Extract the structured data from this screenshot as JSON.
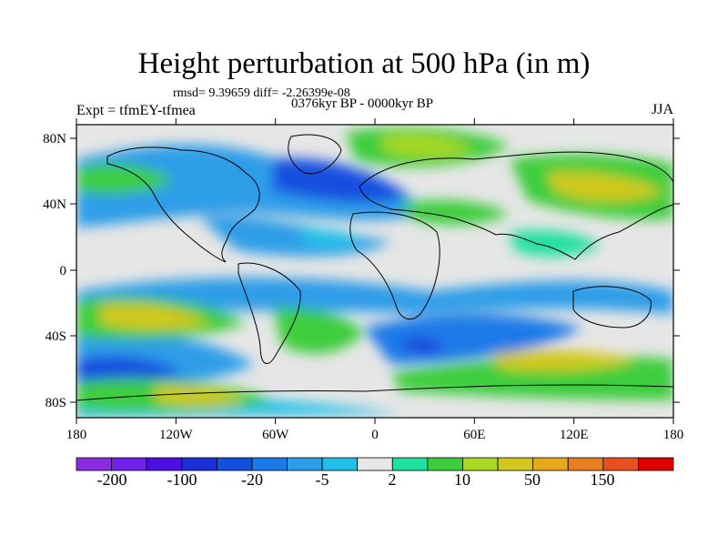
{
  "title": "Height perturbation at 500 hPa (in m)",
  "stats": "rmsd= 9.39659  diff= -2.26399e-08",
  "left_label": "Expt = tfmEY-tfmea",
  "center_label": "0376kyr BP - 0000kyr BP",
  "right_label": "JJA",
  "lon_ticks": [
    "180",
    "120W",
    "60W",
    "0",
    "60E",
    "120E",
    "180"
  ],
  "lat_ticks": [
    "80N",
    "40N",
    "0",
    "40S",
    "80S"
  ],
  "colorbar": {
    "colors": [
      "#8a2be2",
      "#7020e8",
      "#4b10e0",
      "#1a2fd6",
      "#1450e0",
      "#1a7ae8",
      "#2d9de8",
      "#20c0e8",
      "#e6e6e6",
      "#20e0a0",
      "#3ccd3c",
      "#a8d820",
      "#d2c81e",
      "#e8a81e",
      "#e88020",
      "#e85020",
      "#e00000"
    ],
    "labels": [
      "-200",
      "-100",
      "-20",
      "-5",
      "2",
      "10",
      "50",
      "150"
    ]
  }
}
